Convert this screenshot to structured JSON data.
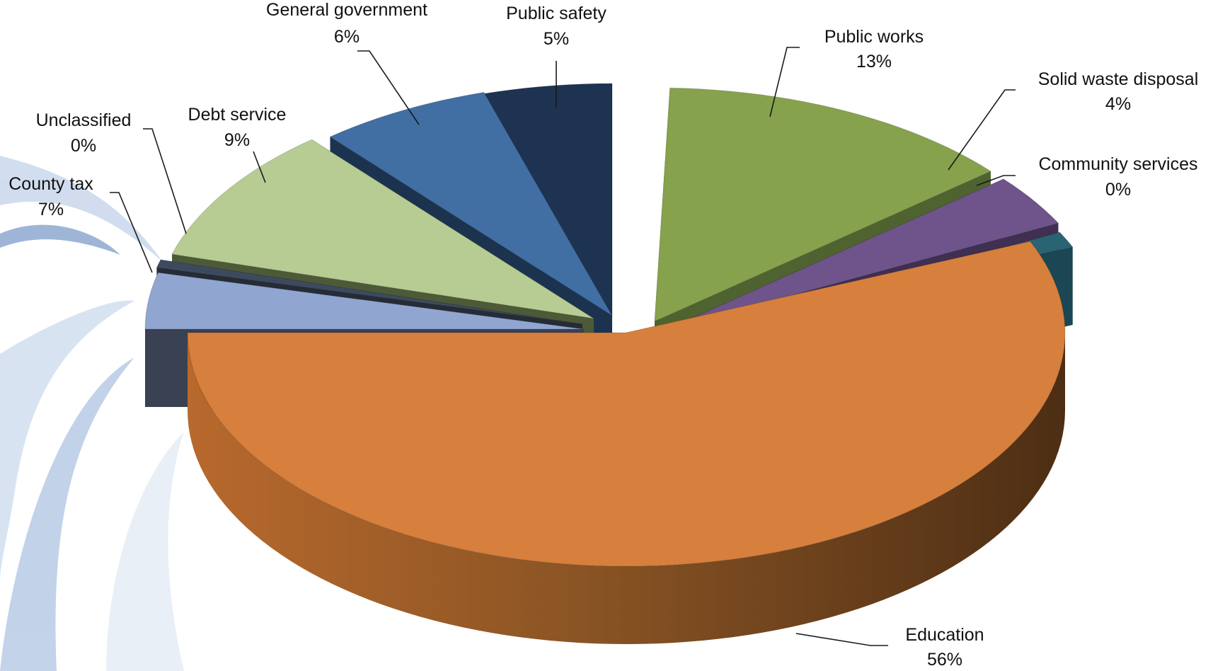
{
  "chart_data": {
    "type": "pie",
    "style": "3d-exploded",
    "title": "",
    "legend": "none",
    "slices": [
      {
        "key": "public_works",
        "label": "Public works",
        "value": 13,
        "value_label": "13%",
        "color": "#86a24d",
        "side_color": "#4f6330"
      },
      {
        "key": "solid_waste",
        "label": "Solid waste disposal",
        "value": 4,
        "value_label": "4%",
        "color": "#6e548a",
        "side_color": "#3f2f51"
      },
      {
        "key": "community_services",
        "label": "Community services",
        "value": 0,
        "value_label": "0%",
        "color": "#2a6372",
        "side_color": "#1b4654"
      },
      {
        "key": "education",
        "label": "Education",
        "value": 56,
        "value_label": "56%",
        "color": "#d77f3c",
        "side_color": "#7a4a20"
      },
      {
        "key": "county_tax",
        "label": "County tax",
        "value": 7,
        "value_label": "7%",
        "color": "#90a6d0",
        "side_color": "#3a4153"
      },
      {
        "key": "unclassified",
        "label": "Unclassified",
        "value": 0,
        "value_label": "0%",
        "color": "#3d4a5e",
        "side_color": "#262c36"
      },
      {
        "key": "debt_service",
        "label": "Debt service",
        "value": 9,
        "value_label": "9%",
        "color": "#b7cc93",
        "side_color": "#4d5a38"
      },
      {
        "key": "general_government",
        "label": "General government",
        "value": 6,
        "value_label": "6%",
        "color": "#416fa3",
        "side_color": "#1c3350"
      },
      {
        "key": "public_safety",
        "label": "Public safety",
        "value": 5,
        "value_label": "5%",
        "color": "#1e3352",
        "side_color": "#0f1a2a"
      }
    ]
  }
}
